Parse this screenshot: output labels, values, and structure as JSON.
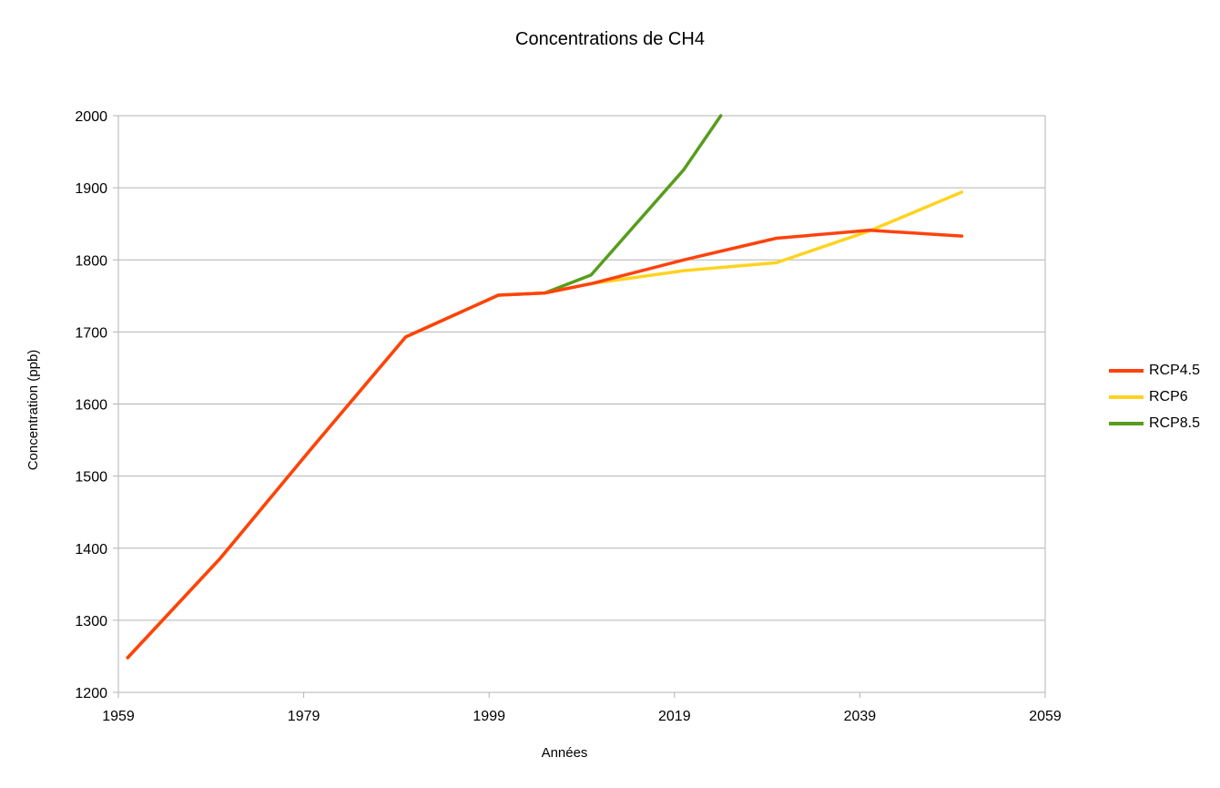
{
  "chart_data": {
    "type": "line",
    "title": "Concentrations de CH4",
    "xlabel": "Années",
    "ylabel": "Concentration (ppb)",
    "xlim": [
      1959,
      2059
    ],
    "ylim": [
      1200,
      2000
    ],
    "x_ticks": [
      1959,
      1979,
      1999,
      2019,
      2039,
      2059
    ],
    "y_ticks": [
      1200,
      1300,
      1400,
      1500,
      1600,
      1700,
      1800,
      1900,
      2000
    ],
    "grid": "horizontal",
    "legend_position": "right",
    "series": [
      {
        "name": "RCP8.5",
        "color": "#579d1c",
        "x": [
          1960,
          1970,
          1980,
          1990,
          2000,
          2005,
          2010,
          2020,
          2024
        ],
        "y": [
          1248,
          1386,
          1541,
          1693,
          1751,
          1754,
          1779,
          1925,
          2000
        ]
      },
      {
        "name": "RCP6",
        "color": "#ffd320",
        "x": [
          1960,
          1970,
          1980,
          1990,
          2000,
          2005,
          2010,
          2020,
          2030,
          2040,
          2050
        ],
        "y": [
          1248,
          1386,
          1541,
          1693,
          1751,
          1754,
          1767,
          1785,
          1796,
          1840,
          1894
        ]
      },
      {
        "name": "RCP4.5",
        "color": "#ff420e",
        "x": [
          1960,
          1970,
          1980,
          1990,
          2000,
          2005,
          2010,
          2020,
          2030,
          2040,
          2050
        ],
        "y": [
          1248,
          1386,
          1541,
          1693,
          1751,
          1754,
          1767,
          1800,
          1830,
          1841,
          1833
        ]
      }
    ],
    "legend": [
      {
        "label": "RCP4.5",
        "color": "#ff420e"
      },
      {
        "label": "RCP6",
        "color": "#ffd320"
      },
      {
        "label": "RCP8.5",
        "color": "#579d1c"
      }
    ]
  }
}
